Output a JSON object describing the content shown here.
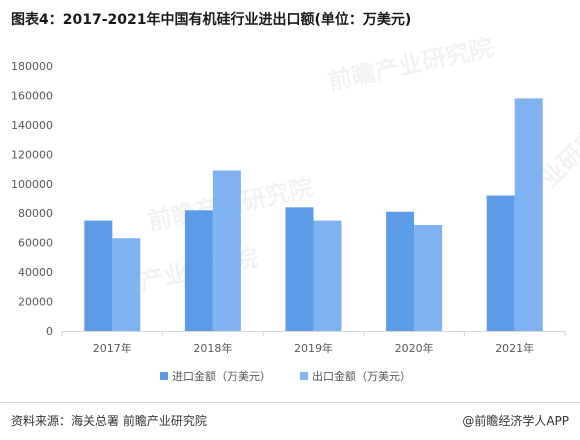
{
  "title": "图表4：2017-2021年中国有机硅行业进出口额(单位：万美元)",
  "footer": {
    "source": "资料来源：海关总署 前瞻产业研究院",
    "credit": "@前瞻经济学人APP"
  },
  "watermark": "前瞻产业研究院",
  "chart_data": {
    "type": "bar",
    "categories": [
      "2017年",
      "2018年",
      "2019年",
      "2020年",
      "2021年"
    ],
    "series": [
      {
        "name": "进口金额（万美元）",
        "color": "#5b9be8",
        "values": [
          75000,
          82000,
          84000,
          81000,
          92000
        ]
      },
      {
        "name": "出口金额（万美元）",
        "color": "#7eb2f0",
        "values": [
          63000,
          109000,
          75000,
          72000,
          158000
        ]
      }
    ],
    "ylim": [
      0,
      180000
    ],
    "yticks": [
      0,
      20000,
      40000,
      60000,
      80000,
      100000,
      120000,
      140000,
      160000,
      180000
    ],
    "title": "",
    "xlabel": "",
    "ylabel": "",
    "grid": false,
    "legend_position": "bottom"
  }
}
